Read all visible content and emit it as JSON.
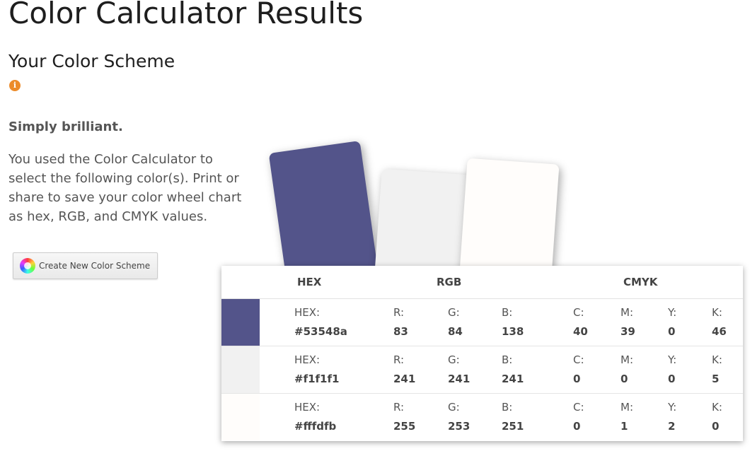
{
  "page": {
    "title": "Color Calculator Results",
    "subtitle": "Your Color Scheme",
    "info_icon": "info-icon",
    "tagline": "Simply brilliant.",
    "description": "You used the Color Calculator to select the following color(s). Print or share to save your color wheel chart as hex, RGB, and CMYK values.",
    "new_scheme_button": {
      "label": "Create New Color Scheme",
      "icon": "color-wheel-icon"
    }
  },
  "table": {
    "headers": {
      "hex": "HEX",
      "rgb": "RGB",
      "cmyk": "CMYK"
    },
    "labels": {
      "hex": "HEX:",
      "r": "R:",
      "g": "G:",
      "b": "B:",
      "c": "C:",
      "m": "M:",
      "y": "Y:",
      "k": "K:"
    },
    "colors": [
      {
        "hex": "#53548a",
        "r": "83",
        "g": "84",
        "b": "138",
        "c": "40",
        "m": "39",
        "y": "0",
        "k": "46"
      },
      {
        "hex": "#f1f1f1",
        "r": "241",
        "g": "241",
        "b": "241",
        "c": "0",
        "m": "0",
        "y": "0",
        "k": "5"
      },
      {
        "hex": "#fffdfb",
        "r": "255",
        "g": "253",
        "b": "251",
        "c": "0",
        "m": "1",
        "y": "2",
        "k": "0"
      }
    ]
  }
}
